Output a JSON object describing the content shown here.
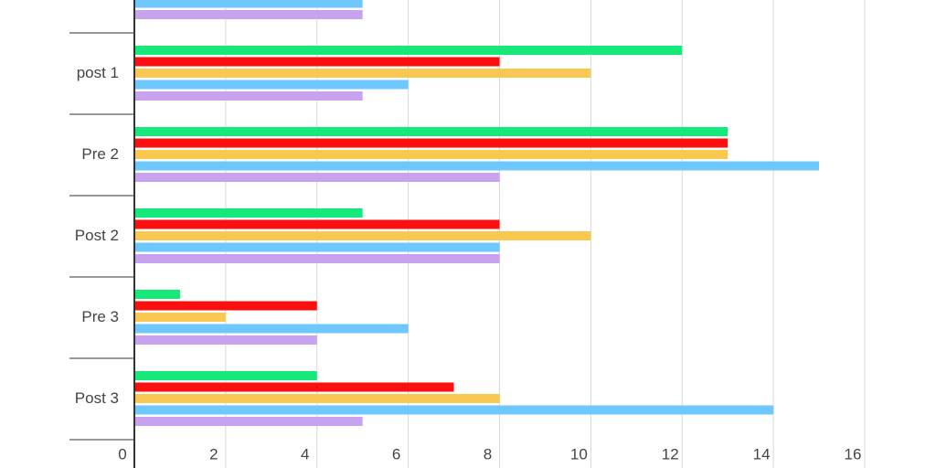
{
  "chart_data": {
    "type": "barh",
    "categories": [
      null,
      "post 1",
      "Pre 2",
      "Post 2",
      "Pre 3",
      "Post 3"
    ],
    "series": [
      {
        "color": "#17e87a",
        "values": [
          null,
          12,
          13,
          5,
          1,
          4
        ]
      },
      {
        "color": "#fb0f0f",
        "values": [
          null,
          8,
          13,
          8,
          4,
          7
        ]
      },
      {
        "color": "#f9c851",
        "values": [
          null,
          10,
          13,
          10,
          2,
          8
        ]
      },
      {
        "color": "#6ec8fd",
        "values": [
          5,
          6,
          15,
          8,
          6,
          14
        ]
      },
      {
        "color": "#c6a2ef",
        "values": [
          5,
          5,
          8,
          8,
          4,
          5
        ]
      }
    ],
    "xlim": [
      0,
      16
    ],
    "xticks": [
      0,
      2,
      4,
      6,
      8,
      10,
      12,
      14,
      16
    ],
    "grid": true
  }
}
